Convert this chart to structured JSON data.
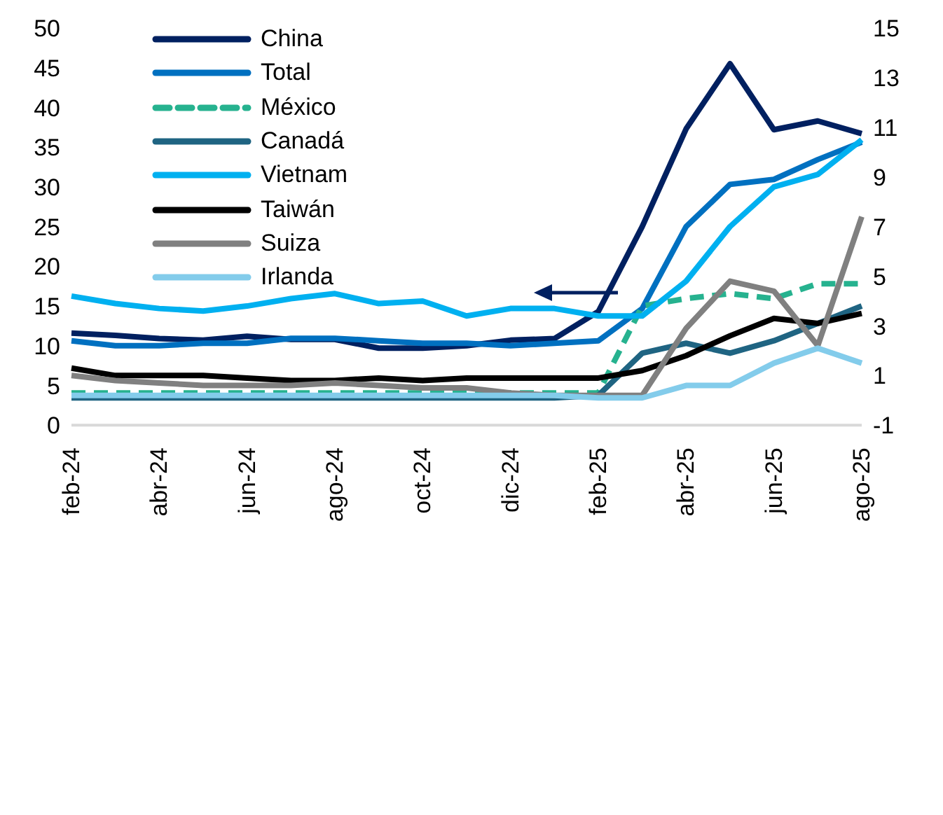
{
  "chart_data": {
    "type": "line",
    "categories": [
      "feb-24",
      null,
      "abr-24",
      null,
      "jun-24",
      null,
      "ago-24",
      null,
      "oct-24",
      null,
      "dic-24",
      null,
      "feb-25",
      null,
      "abr-25",
      null,
      "jun-25",
      null,
      "ago-25"
    ],
    "series": [
      {
        "name": "China",
        "color": "#002060",
        "values": [
          11.6,
          11.3,
          10.9,
          10.7,
          11.2,
          10.8,
          10.8,
          9.7,
          9.7,
          10.0,
          10.7,
          10.9,
          14.3,
          25.0,
          37.3,
          45.5,
          37.2,
          38.3,
          36.7
        ]
      },
      {
        "name": "Total",
        "color": "#0070c0",
        "axis": "y2",
        "values": [
          2.4,
          2.2,
          2.2,
          2.3,
          2.3,
          2.5,
          2.5,
          2.4,
          2.3,
          2.3,
          2.2,
          2.3,
          2.4,
          3.7,
          7.0,
          8.7,
          8.9,
          9.7,
          10.4
        ]
      },
      {
        "name": "México",
        "color": "#26b28f",
        "axis": "y2",
        "line_style": "dashed",
        "values": [
          0.3,
          0.3,
          0.3,
          0.3,
          0.3,
          0.3,
          0.3,
          0.3,
          0.3,
          0.3,
          0.3,
          0.3,
          0.3,
          3.8,
          4.1,
          4.3,
          4.1,
          4.7,
          4.7
        ]
      },
      {
        "name": "Canadá",
        "color": "#1f6482",
        "axis": "y2",
        "values": [
          0.1,
          0.1,
          0.1,
          0.1,
          0.1,
          0.1,
          0.1,
          0.1,
          0.1,
          0.1,
          0.1,
          0.1,
          0.2,
          1.9,
          2.3,
          1.9,
          2.4,
          3.1,
          3.8
        ]
      },
      {
        "name": "Vietnam",
        "color": "#00b0f0",
        "axis": "y2",
        "values": [
          4.2,
          3.9,
          3.7,
          3.6,
          3.8,
          4.1,
          4.3,
          3.9,
          4.0,
          3.4,
          3.7,
          3.7,
          3.4,
          3.4,
          4.8,
          7.0,
          8.6,
          9.1,
          10.5
        ]
      },
      {
        "name": "Taiwán",
        "color": "#000000",
        "axis": "y2",
        "values": [
          1.3,
          1.0,
          1.0,
          1.0,
          0.9,
          0.8,
          0.8,
          0.9,
          0.8,
          0.9,
          0.9,
          0.9,
          0.9,
          1.2,
          1.8,
          2.6,
          3.3,
          3.1,
          3.5
        ]
      },
      {
        "name": "Suiza",
        "color": "#808080",
        "axis": "y2",
        "values": [
          1.0,
          0.8,
          0.7,
          0.6,
          0.6,
          0.6,
          0.7,
          0.6,
          0.5,
          0.5,
          0.3,
          0.2,
          0.2,
          0.2,
          2.9,
          4.8,
          4.4,
          2.2,
          7.4
        ]
      },
      {
        "name": "Irlanda",
        "color": "#83cceb",
        "axis": "y2",
        "values": [
          0.2,
          0.2,
          0.2,
          0.2,
          0.2,
          0.2,
          0.2,
          0.2,
          0.2,
          0.2,
          0.2,
          0.2,
          0.1,
          0.1,
          0.6,
          0.6,
          1.5,
          2.1,
          1.5
        ]
      }
    ],
    "ylim": [
      0,
      50
    ],
    "yticks": [
      0,
      5,
      10,
      15,
      20,
      25,
      30,
      35,
      40,
      45,
      50
    ],
    "y2lim": [
      -1,
      15
    ],
    "y2ticks": [
      -1,
      1,
      3,
      5,
      7,
      9,
      11,
      13,
      15
    ],
    "legend": "top left",
    "marker": "none"
  }
}
